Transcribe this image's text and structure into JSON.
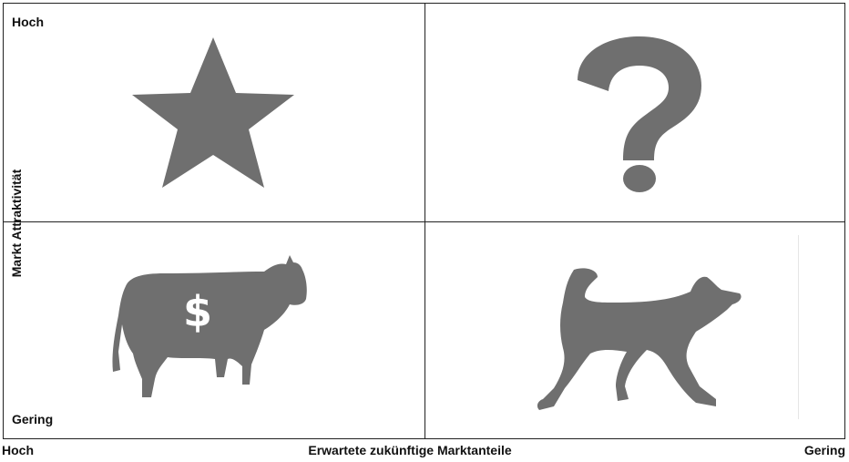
{
  "matrix": {
    "y_axis": {
      "title": "Markt Attraktivität",
      "high": "Hoch",
      "low": "Gering"
    },
    "x_axis": {
      "title": "Erwartete zukünftige Marktanteile",
      "high": "Hoch",
      "low": "Gering"
    },
    "quadrants": {
      "top_left": {
        "icon": "star-icon"
      },
      "top_right": {
        "icon": "question-mark-icon"
      },
      "bottom_left": {
        "icon": "cash-cow-icon",
        "symbol": "$"
      },
      "bottom_right": {
        "icon": "dog-icon"
      }
    },
    "icon_color": "#6f6f6f"
  }
}
